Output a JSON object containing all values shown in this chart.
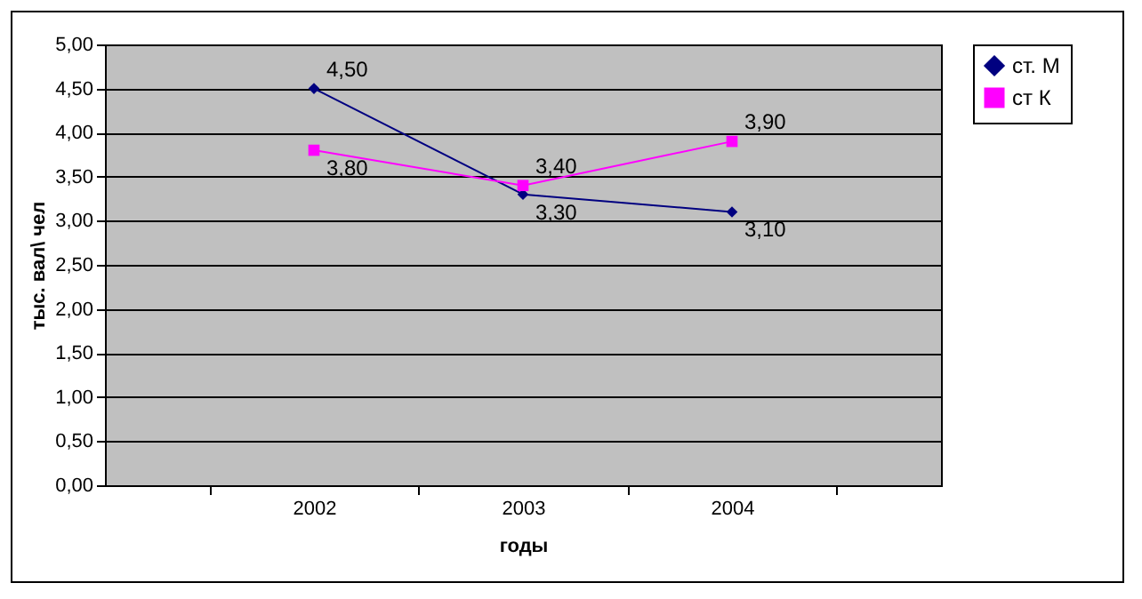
{
  "chart_data": {
    "type": "line",
    "xlabel": "годы",
    "ylabel": "тыс. вал\\ чел",
    "categories": [
      "2002",
      "2003",
      "2004"
    ],
    "series": [
      {
        "name": "ст. М",
        "color": "#000080",
        "marker": "diamond",
        "values": [
          4.5,
          3.3,
          3.1
        ],
        "value_labels": [
          "4,50",
          "3,30",
          "3,10"
        ]
      },
      {
        "name": "ст К",
        "color": "#ff00ff",
        "marker": "square",
        "values": [
          3.8,
          3.4,
          3.9
        ],
        "value_labels": [
          "3,80",
          "3,40",
          "3,90"
        ]
      }
    ],
    "ylim": [
      0,
      5
    ],
    "yticks": [
      {
        "value": 0,
        "label": "0,00"
      },
      {
        "value": 0.5,
        "label": "0,50"
      },
      {
        "value": 1,
        "label": "1,00"
      },
      {
        "value": 1.5,
        "label": "1,50"
      },
      {
        "value": 2,
        "label": "2,00"
      },
      {
        "value": 2.5,
        "label": "2,50"
      },
      {
        "value": 3,
        "label": "3,00"
      },
      {
        "value": 3.5,
        "label": "3,50"
      },
      {
        "value": 4,
        "label": "4,00"
      },
      {
        "value": 4.5,
        "label": "4,50"
      },
      {
        "value": 5,
        "label": "5,00"
      }
    ],
    "grid": "y",
    "legend": "right",
    "line_style": "solid"
  }
}
